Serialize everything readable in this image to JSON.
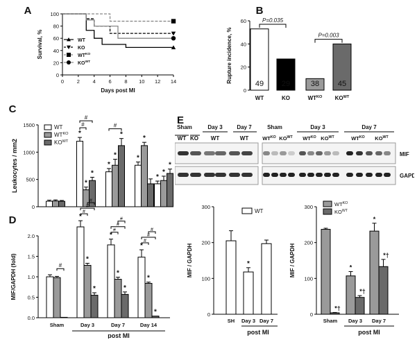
{
  "panels": {
    "A": "A",
    "B": "B",
    "C": "C",
    "D": "D",
    "E": "E"
  },
  "chart_data": [
    {
      "id": "A",
      "type": "line",
      "ylabel": "Survival, %",
      "xlabel": "Days post MI",
      "xlim": [
        0,
        14
      ],
      "ylim": [
        0,
        100
      ],
      "xticks": [
        "0",
        "2",
        "4",
        "6",
        "8",
        "10",
        "12",
        "14"
      ],
      "yticks": [
        "0",
        "20",
        "40",
        "60",
        "80",
        "100"
      ],
      "legend_position": "bottom-left",
      "series": [
        {
          "name": "WT",
          "marker": "triangle-up",
          "dash": "solid",
          "color": "#000000",
          "x": [
            0,
            3,
            3,
            4,
            4,
            5,
            5,
            8,
            8,
            14
          ],
          "y": [
            100,
            100,
            73,
            73,
            60,
            60,
            50,
            50,
            45,
            45
          ]
        },
        {
          "name": "KO",
          "marker": "triangle-down",
          "dash": "dashed",
          "color": "#000000",
          "x": [
            0,
            3,
            3,
            4,
            4,
            6,
            6,
            14
          ],
          "y": [
            100,
            100,
            92,
            92,
            80,
            80,
            68,
            68
          ]
        },
        {
          "name": "WT",
          "sup": "KO",
          "marker": "square",
          "dash": "dashed",
          "color": "#888888",
          "x": [
            0,
            6,
            6,
            14
          ],
          "y": [
            100,
            100,
            88,
            88
          ]
        },
        {
          "name": "KO",
          "sup": "WT",
          "marker": "circle",
          "dash": "solid",
          "color": "#888888",
          "x": [
            0,
            3,
            3,
            4,
            4,
            7,
            7,
            14
          ],
          "y": [
            100,
            100,
            90,
            90,
            80,
            80,
            60,
            60
          ]
        }
      ]
    },
    {
      "id": "B",
      "type": "bar",
      "ylabel": "Rupture incidence, %",
      "ylim": [
        0,
        60
      ],
      "yticks": [
        "0",
        "20",
        "40",
        "60"
      ],
      "categories": [
        {
          "main": "WT",
          "sup": ""
        },
        {
          "main": "KO",
          "sup": ""
        },
        {
          "main": "WT",
          "sup": "KO"
        },
        {
          "main": "KO",
          "sup": "WT"
        }
      ],
      "values": [
        53,
        27,
        10,
        40
      ],
      "n_labels": [
        "49",
        "29",
        "38",
        "45"
      ],
      "colors": [
        "#ffffff",
        "#000000",
        "#9a9a9a",
        "#6a6a6a"
      ],
      "annotations": [
        {
          "text": "P=0.035",
          "from": 0,
          "to": 1,
          "y": 57
        },
        {
          "text": "P=0.003",
          "from": 2,
          "to": 3,
          "y": 44
        }
      ]
    },
    {
      "id": "C",
      "type": "bar",
      "ylabel": "Leukocytes / mm2",
      "ylim": [
        0,
        1500
      ],
      "yticks": [
        "0",
        "500",
        "1000",
        "1500"
      ],
      "legend": [
        {
          "main": "WT",
          "sup": ""
        },
        {
          "main": "WT",
          "sup": "KO"
        },
        {
          "main": "KO",
          "sup": "WT"
        }
      ],
      "legend_position": "top-left",
      "groups": 5,
      "series": [
        {
          "name": "WT",
          "values": [
            100,
            1200,
            640,
            760,
            420
          ],
          "errors": [
            20,
            70,
            60,
            60,
            50
          ]
        },
        {
          "name": "WTKO",
          "values": [
            105,
            310,
            760,
            1120,
            480
          ],
          "errors": [
            20,
            50,
            110,
            60,
            80
          ]
        },
        {
          "name": "KOWT",
          "values": [
            100,
            480,
            1120,
            420,
            610
          ],
          "errors": [
            15,
            60,
            130,
            90,
            80
          ]
        }
      ],
      "colors": [
        "#ffffff",
        "#9a9a9a",
        "#6a6a6a"
      ],
      "stars": [
        [
          false,
          true,
          true,
          true,
          true
        ],
        [
          false,
          true,
          true,
          true,
          true
        ],
        [
          false,
          true,
          true,
          false,
          true
        ]
      ],
      "hashes": [
        {
          "group": 1,
          "pairs": [
            [
              0,
              1
            ],
            [
              0,
              2
            ]
          ]
        },
        {
          "group": 2,
          "pairs": [
            [
              0,
              2
            ]
          ]
        }
      ]
    },
    {
      "id": "D",
      "type": "bar",
      "ylabel": "MIF/GAPDH (fold)",
      "xlabel": "post MI",
      "ylim": [
        0,
        2.0
      ],
      "yticks": [
        "0.0",
        "0.5",
        "1.0",
        "1.5",
        "2.0"
      ],
      "categories": [
        "Sham",
        "Day 3",
        "Day 7",
        "Day 14"
      ],
      "series": [
        {
          "name": "WT",
          "values": [
            1.0,
            2.22,
            1.78,
            1.48
          ],
          "errors": [
            0.05,
            0.15,
            0.14,
            0.18
          ]
        },
        {
          "name": "WTKO",
          "values": [
            0.98,
            1.28,
            0.94,
            0.84
          ],
          "errors": [
            0.03,
            0.05,
            0.05,
            0.03
          ]
        },
        {
          "name": "KOWT",
          "values": [
            0.01,
            0.55,
            0.57,
            0.04
          ],
          "errors": [
            0.0,
            0.06,
            0.06,
            0.0
          ]
        }
      ],
      "colors": [
        "#ffffff",
        "#9a9a9a",
        "#6a6a6a"
      ],
      "stars": [
        [
          false,
          true,
          true,
          true
        ],
        [
          false,
          true,
          true,
          true
        ],
        [
          false,
          true,
          true,
          true
        ]
      ],
      "hash_single": {
        "group": 0,
        "pair": [
          1,
          2
        ]
      }
    },
    {
      "id": "E1",
      "type": "bar",
      "ylabel": "MIF / GAPDH",
      "xlabel": "post MI",
      "ylim": [
        0,
        300
      ],
      "yticks": [
        "0",
        "100",
        "200",
        "300"
      ],
      "categories": [
        "SH",
        "Day 3",
        "Day 7"
      ],
      "values": [
        205,
        118,
        197
      ],
      "errors": [
        28,
        12,
        10
      ],
      "legend": [
        {
          "main": "WT",
          "sup": ""
        }
      ],
      "color": "#ffffff",
      "stars": [
        false,
        true,
        false
      ]
    },
    {
      "id": "E2",
      "type": "bar",
      "ylabel": "MIF / GAPDH",
      "xlabel": "post MI",
      "ylim": [
        0,
        300
      ],
      "yticks": [
        "0",
        "100",
        "200",
        "300"
      ],
      "categories": [
        "Sham",
        "Day 3",
        "Day 7"
      ],
      "legend": [
        {
          "main": "WT",
          "sup": "KO"
        },
        {
          "main": "KO",
          "sup": "WT"
        }
      ],
      "series": [
        {
          "name": "WTKO",
          "values": [
            237,
            107,
            232
          ],
          "errors": [
            3,
            12,
            22
          ]
        },
        {
          "name": "KOWT",
          "values": [
            4,
            47,
            133
          ],
          "errors": [
            1,
            5,
            20
          ]
        }
      ],
      "colors": [
        "#9a9a9a",
        "#6a6a6a"
      ],
      "marks": [
        [
          "",
          "*",
          "*"
        ],
        [
          "*†",
          "*†",
          "*†"
        ]
      ]
    }
  ],
  "blot": {
    "left_headers": [
      "Sham",
      "Day 3",
      "Day 7"
    ],
    "left_lanes": [
      "WT",
      "KO",
      "WT",
      "WT"
    ],
    "right_headers": [
      "Sham",
      "Day 3",
      "Day 7"
    ],
    "right_lanes": [
      {
        "main": "WT",
        "sup": "KO"
      },
      {
        "main": "KO",
        "sup": "WT"
      },
      {
        "main": "WT",
        "sup": "KO"
      },
      {
        "main": "KO",
        "sup": "WT"
      },
      {
        "main": "WT",
        "sup": "KO"
      },
      {
        "main": "KO",
        "sup": "WT"
      }
    ],
    "row_labels": [
      "MIF",
      "GAPDH"
    ]
  },
  "common": {
    "post_mi": "post MI",
    "star": "*",
    "hash": "#"
  }
}
